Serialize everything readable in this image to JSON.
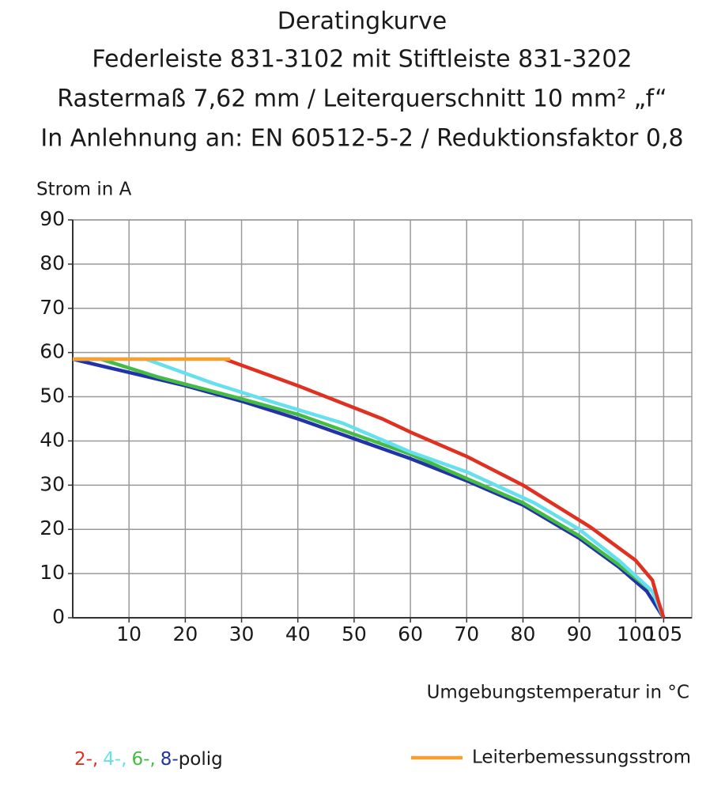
{
  "chart_data": {
    "type": "line",
    "title": "Deratingkurve",
    "subtitle": [
      "Federleiste 831-3102 mit Stiftleiste 831-3202",
      "Rastermaß 7,62 mm / Leiterquerschnitt 10 mm² „f“",
      "In Anlehnung an: EN 60512-5-2 / Reduktionsfaktor 0,8"
    ],
    "y_label": "Strom in A",
    "x_label": "Umgebungstemperatur in °C",
    "legend_suffix": "polig",
    "xlim": [
      0,
      110
    ],
    "ylim": [
      0,
      90
    ],
    "xticks": [
      10,
      20,
      30,
      40,
      50,
      60,
      70,
      80,
      90,
      100,
      105
    ],
    "yticks": [
      0,
      10,
      20,
      30,
      40,
      50,
      60,
      70,
      80,
      90
    ],
    "grid": true,
    "series": [
      {
        "name": "8-",
        "color": "#2233aa",
        "x": [
          0,
          10,
          20,
          30,
          40,
          50,
          60,
          70,
          80,
          90,
          97,
          102,
          105
        ],
        "values": [
          58.5,
          55.5,
          52.5,
          49,
          45,
          40.5,
          36,
          31,
          25.5,
          18,
          11.5,
          6,
          0
        ]
      },
      {
        "name": "6-,",
        "color": "#44bb44",
        "x": [
          0,
          5,
          15,
          30,
          40,
          50,
          60,
          70,
          80,
          90,
          97,
          103,
          105
        ],
        "values": [
          58.5,
          58.5,
          54.5,
          49.5,
          46,
          41.5,
          37,
          31.5,
          26,
          18.5,
          12,
          6,
          0
        ]
      },
      {
        "name": "4-,",
        "color": "#66e0ee",
        "x": [
          0,
          13,
          25,
          35,
          48,
          60,
          70,
          82,
          90,
          97,
          103,
          105
        ],
        "values": [
          58.5,
          58.5,
          53,
          49,
          44,
          37.5,
          33,
          26,
          20,
          13,
          6,
          0
        ]
      },
      {
        "name": "2-,",
        "color": "#e03020",
        "x": [
          27,
          40,
          50,
          55,
          60,
          70,
          80,
          92,
          100,
          103,
          104,
          105
        ],
        "values": [
          58.5,
          52.5,
          47.5,
          45,
          42,
          36.5,
          30,
          20.5,
          13,
          8.5,
          4,
          0
        ]
      },
      {
        "name": "Leiterbemessungsstrom",
        "color": "#f5a030",
        "x": [
          0,
          28
        ],
        "values": [
          58.5,
          58.5
        ]
      }
    ]
  }
}
